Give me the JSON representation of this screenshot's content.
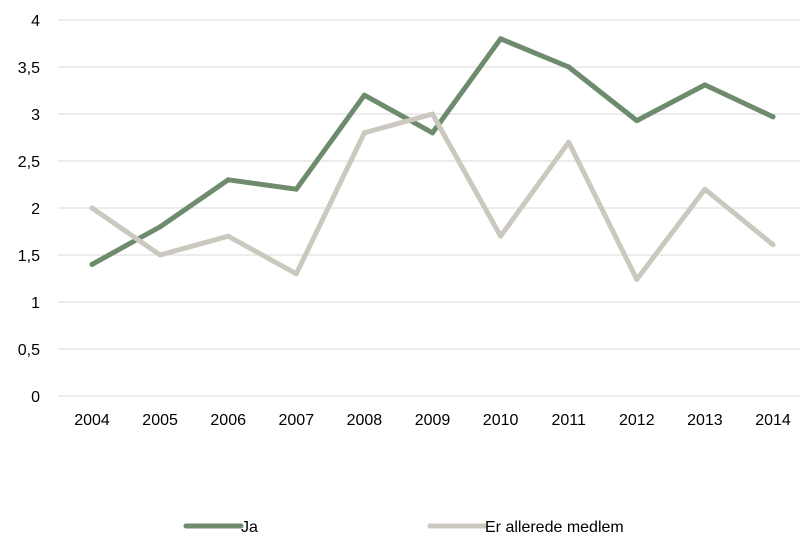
{
  "chart_data": {
    "type": "line",
    "title": "",
    "xlabel": "",
    "ylabel": "",
    "categories": [
      "2004",
      "2005",
      "2006",
      "2007",
      "2008",
      "2009",
      "2010",
      "2011",
      "2012",
      "2013",
      "2014"
    ],
    "y_ticks": [
      "0",
      "0,5",
      "1",
      "1,5",
      "2",
      "2,5",
      "3",
      "3,5",
      "4"
    ],
    "ylim": [
      0,
      4
    ],
    "grid": "horizontal",
    "legend_position": "bottom",
    "series": [
      {
        "name": "Ja",
        "color": "#6e8b6e",
        "values": [
          1.4,
          1.8,
          2.3,
          2.2,
          3.2,
          2.8,
          3.8,
          3.5,
          2.93,
          3.31,
          2.97
        ]
      },
      {
        "name": "Er allerede medlem",
        "color": "#cbc9bf",
        "values": [
          2.0,
          1.5,
          1.7,
          1.3,
          2.8,
          3.0,
          1.7,
          2.7,
          1.24,
          2.2,
          1.61
        ]
      }
    ]
  }
}
